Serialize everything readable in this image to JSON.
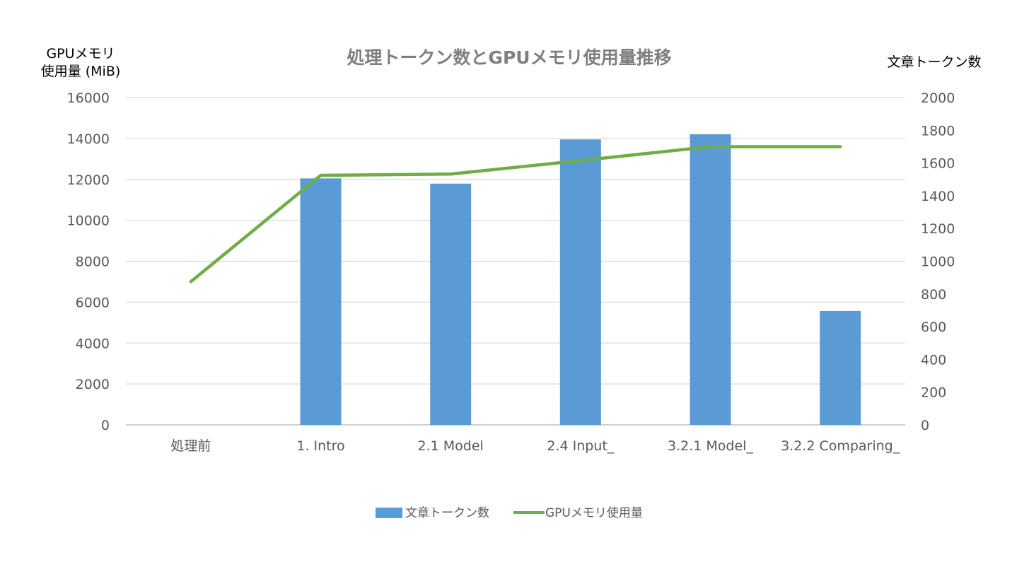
{
  "chart_data": {
    "type": "bar+line",
    "title": "処理トークン数とGPUメモリ使用量推移",
    "y_left_label_lines": [
      "GPUメモリ",
      "使用量 (MiB)"
    ],
    "y_right_label": "文章トークン数",
    "categories": [
      "処理前",
      "1. Intro",
      "2.1 Model",
      "2.4 Input_",
      "3.2.1 Model_",
      "3.2.2 Comparing_"
    ],
    "y_left_ticks": [
      0,
      2000,
      4000,
      6000,
      8000,
      10000,
      12000,
      14000,
      16000
    ],
    "y_right_ticks": [
      0,
      200,
      400,
      600,
      800,
      1000,
      1200,
      1400,
      1600,
      1800,
      2000
    ],
    "ylim_left": [
      0,
      16000
    ],
    "ylim_right": [
      0,
      2000
    ],
    "grid": true,
    "legend_position": "bottom",
    "series": [
      {
        "name": "文章トークン数",
        "type": "bar",
        "axis": "right",
        "color": "#5b9bd5",
        "values": [
          0,
          1506,
          1474,
          1744,
          1776,
          696
        ]
      },
      {
        "name": "GPUメモリ使用量",
        "type": "line",
        "axis": "left",
        "color": "#70ad47",
        "values": [
          7000,
          12200,
          12260,
          12920,
          13600,
          13600
        ]
      }
    ]
  }
}
